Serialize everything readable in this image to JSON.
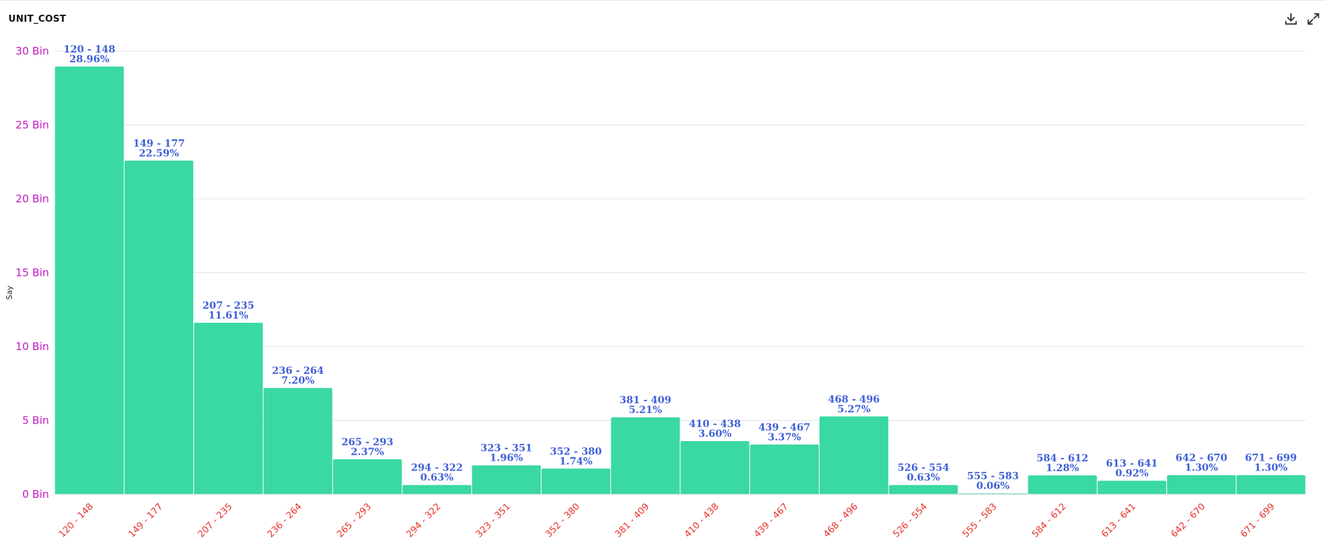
{
  "header": {
    "title": "UNIT_COST",
    "download_icon": "download-icon",
    "expand_icon": "expand-icon"
  },
  "colors": {
    "bar": "#3ad9a1",
    "ytick": "#c21bc2",
    "xtick": "#e8332e",
    "datalabel": "#3f5fd8",
    "grid": "#e4e4ee"
  },
  "chart_data": {
    "type": "bar",
    "title": "UNIT_COST",
    "xlabel": "",
    "ylabel": "Say",
    "ylim": [
      0,
      30
    ],
    "yticks": [
      {
        "value": 0,
        "label": "0 Bin"
      },
      {
        "value": 5,
        "label": "5 Bin"
      },
      {
        "value": 10,
        "label": "10 Bin"
      },
      {
        "value": 15,
        "label": "15 Bin"
      },
      {
        "value": 20,
        "label": "20 Bin"
      },
      {
        "value": 25,
        "label": "25 Bin"
      },
      {
        "value": 30,
        "label": "30 Bin"
      }
    ],
    "grid": true,
    "categories": [
      "120 - 148",
      "149 - 177",
      "207 - 235",
      "236 - 264",
      "265 - 293",
      "294 - 322",
      "323 - 351",
      "352 - 380",
      "381 - 409",
      "410 - 438",
      "439 - 467",
      "468 - 496",
      "526 - 554",
      "555 - 583",
      "584 - 612",
      "613 - 641",
      "642 - 670",
      "671 - 699"
    ],
    "values": [
      28.96,
      22.59,
      11.61,
      7.2,
      2.37,
      0.63,
      1.96,
      1.74,
      5.21,
      3.6,
      3.37,
      5.27,
      0.63,
      0.06,
      1.28,
      0.92,
      1.3,
      1.3
    ],
    "data_labels": [
      "28.96%",
      "22.59%",
      "11.61%",
      "7.20%",
      "2.37%",
      "0.63%",
      "1.96%",
      "1.74%",
      "5.21%",
      "3.60%",
      "3.37%",
      "5.27%",
      "0.63%",
      "0.06%",
      "1.28%",
      "0.92%",
      "1.30%",
      "1.30%"
    ]
  }
}
